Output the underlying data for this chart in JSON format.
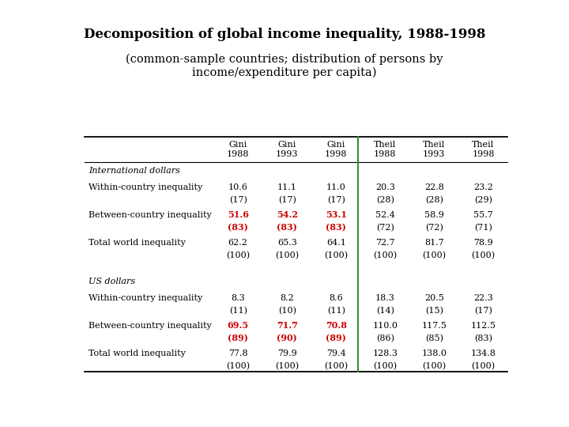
{
  "title": "Decomposition of global income inequality, 1988-1998",
  "subtitle": "(common-sample countries; distribution of persons by\nincome/expenditure per capita)",
  "col_headers": [
    "Gini\n1988",
    "Gini\n1993",
    "Gini\n1998",
    "Theil\n1988",
    "Theil\n1993",
    "Theil\n1998"
  ],
  "sections": [
    {
      "section_label": "International dollars",
      "rows": [
        {
          "label": "Within-country inequality",
          "values": [
            "10.6",
            "11.1",
            "11.0",
            "20.3",
            "22.8",
            "23.2"
          ],
          "pct": [
            "(17)",
            "(17)",
            "(17)",
            "(28)",
            "(28)",
            "(29)"
          ],
          "red_cols": []
        },
        {
          "label": "Between-country inequality",
          "values": [
            "51.6",
            "54.2",
            "53.1",
            "52.4",
            "58.9",
            "55.7"
          ],
          "pct": [
            "(83)",
            "(83)",
            "(83)",
            "(72)",
            "(72)",
            "(71)"
          ],
          "red_cols": [
            0,
            1,
            2
          ]
        },
        {
          "label": "Total world inequality",
          "values": [
            "62.2",
            "65.3",
            "64.1",
            "72.7",
            "81.7",
            "78.9"
          ],
          "pct": [
            "(100)",
            "(100)",
            "(100)",
            "(100)",
            "(100)",
            "(100)"
          ],
          "red_cols": []
        }
      ]
    },
    {
      "section_label": "US dollars",
      "rows": [
        {
          "label": "Within-country inequality",
          "values": [
            "8.3",
            "8.2",
            "8.6",
            "18.3",
            "20.5",
            "22.3"
          ],
          "pct": [
            "(11)",
            "(10)",
            "(11)",
            "(14)",
            "(15)",
            "(17)"
          ],
          "red_cols": []
        },
        {
          "label": "Between-country inequality",
          "values": [
            "69.5",
            "71.7",
            "70.8",
            "110.0",
            "117.5",
            "112.5"
          ],
          "pct": [
            "(89)",
            "(90)",
            "(89)",
            "(86)",
            "(85)",
            "(83)"
          ],
          "red_cols": [
            0,
            1,
            2
          ]
        },
        {
          "label": "Total world inequality",
          "values": [
            "77.8",
            "79.9",
            "79.4",
            "128.3",
            "138.0",
            "134.8"
          ],
          "pct": [
            "(100)",
            "(100)",
            "(100)",
            "(100)",
            "(100)",
            "(100)"
          ],
          "red_cols": []
        }
      ]
    }
  ],
  "background_color": "#ffffff",
  "red_color": "#cc0000",
  "black_color": "#000000",
  "line_color": "#000000",
  "green_divider_color": "#2e8b2e"
}
